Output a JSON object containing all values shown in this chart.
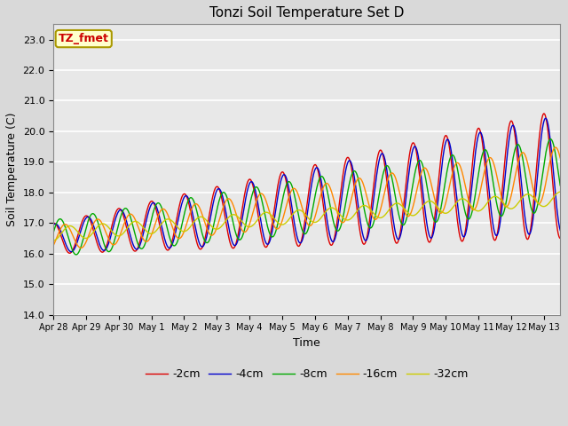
{
  "title": "Tonzi Soil Temperature Set D",
  "xlabel": "Time",
  "ylabel": "Soil Temperature (C)",
  "ylim": [
    14.0,
    23.5
  ],
  "yticks": [
    14.0,
    15.0,
    16.0,
    17.0,
    18.0,
    19.0,
    20.0,
    21.0,
    22.0,
    23.0
  ],
  "annotation_text": "TZ_fmet",
  "annotation_bg": "#ffffcc",
  "annotation_border": "#aa9900",
  "annotation_color": "#cc0000",
  "series_colors": [
    "#dd0000",
    "#0000cc",
    "#00aa00",
    "#ff8800",
    "#cccc00"
  ],
  "series_labels": [
    "-2cm",
    "-4cm",
    "-8cm",
    "-16cm",
    "-32cm"
  ],
  "xticklabels": [
    "Apr 28",
    "Apr 29",
    "Apr 30",
    "May 1",
    "May 2",
    "May 3",
    "May 4",
    "May 5",
    "May 6",
    "May 7",
    "May 8",
    "May 9",
    "May 10",
    "May 11",
    "May 12",
    "May 13"
  ],
  "n_days": 15.5,
  "n_points": 744,
  "figsize": [
    6.4,
    4.8
  ],
  "dpi": 100
}
